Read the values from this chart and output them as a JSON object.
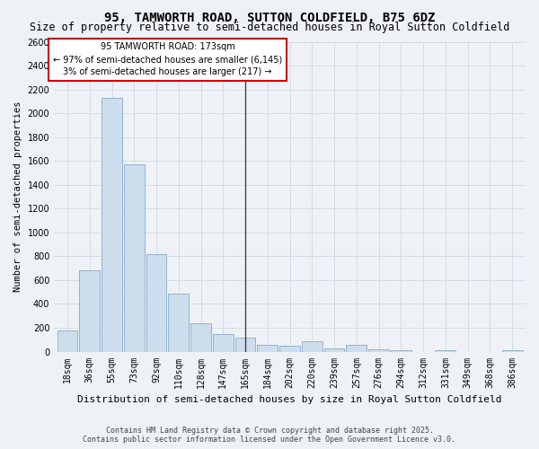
{
  "title": "95, TAMWORTH ROAD, SUTTON COLDFIELD, B75 6DZ",
  "subtitle": "Size of property relative to semi-detached houses in Royal Sutton Coldfield",
  "xlabel": "Distribution of semi-detached houses by size in Royal Sutton Coldfield",
  "ylabel": "Number of semi-detached properties",
  "categories": [
    "18sqm",
    "36sqm",
    "55sqm",
    "73sqm",
    "92sqm",
    "110sqm",
    "128sqm",
    "147sqm",
    "165sqm",
    "184sqm",
    "202sqm",
    "220sqm",
    "239sqm",
    "257sqm",
    "276sqm",
    "294sqm",
    "312sqm",
    "331sqm",
    "349sqm",
    "368sqm",
    "386sqm"
  ],
  "values": [
    180,
    680,
    2130,
    1570,
    820,
    490,
    240,
    150,
    120,
    60,
    50,
    90,
    30,
    55,
    20,
    10,
    0,
    10,
    0,
    0,
    10
  ],
  "bar_color": "#ccdded",
  "bar_edge_color": "#88aac8",
  "highlight_index": 8,
  "highlight_line_color": "#333333",
  "annotation_title": "95 TAMWORTH ROAD: 173sqm",
  "annotation_line1": "← 97% of semi-detached houses are smaller (6,145)",
  "annotation_line2": "3% of semi-detached houses are larger (217) →",
  "annotation_box_facecolor": "#ffffff",
  "annotation_box_edgecolor": "#cc0000",
  "ylim": [
    0,
    2600
  ],
  "yticks": [
    0,
    200,
    400,
    600,
    800,
    1000,
    1200,
    1400,
    1600,
    1800,
    2000,
    2200,
    2400,
    2600
  ],
  "grid_color": "#d0d8e0",
  "background_color": "#eef2f7",
  "footer_line1": "Contains HM Land Registry data © Crown copyright and database right 2025.",
  "footer_line2": "Contains public sector information licensed under the Open Government Licence v3.0.",
  "title_fontsize": 10,
  "subtitle_fontsize": 8.5,
  "tick_fontsize": 7,
  "ylabel_fontsize": 7.5,
  "xlabel_fontsize": 8,
  "footer_fontsize": 6,
  "annotation_fontsize": 7
}
